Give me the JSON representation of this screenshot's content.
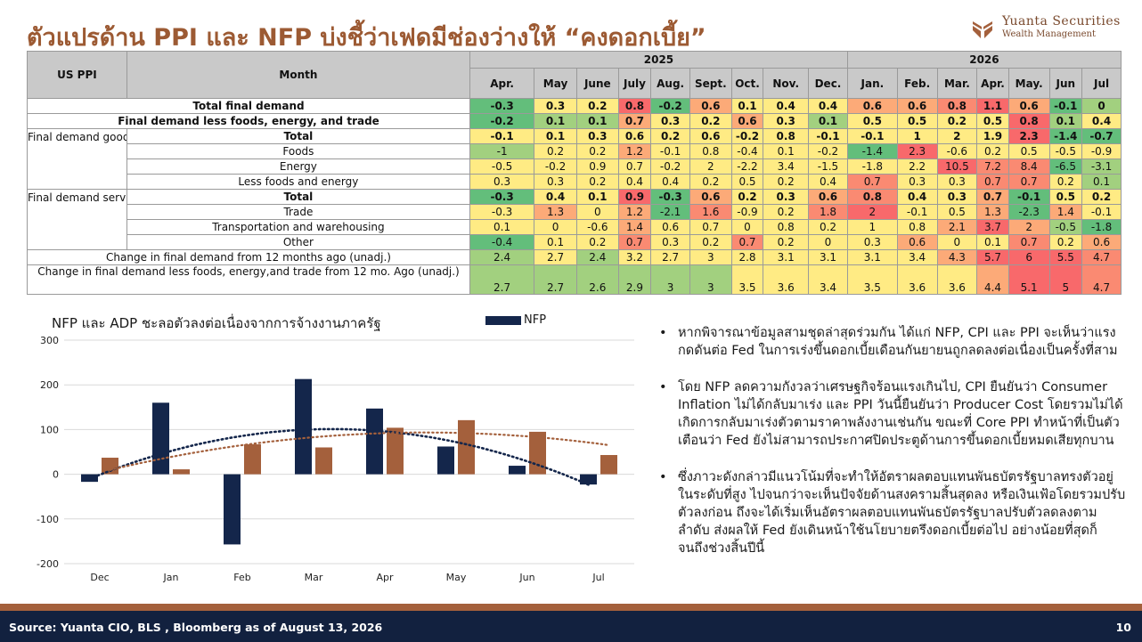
{
  "title": "ตัวแปรด้าน PPI และ NFP บ่งชี้ว่าเฟดมีช่องว่างให้ “คงดอกเบี้ย”",
  "brand": {
    "name": "Yuanta Securities",
    "sub": "Wealth Management",
    "icon": "yuanta-logo-icon"
  },
  "colors": {
    "title": "#9c5a33",
    "nfp": "#14264b",
    "adp": "#a4603c",
    "footer": "#12213f"
  },
  "table": {
    "col_label": "US PPI",
    "col_month": "Month",
    "year_2025": "2025",
    "year_2026": "2026",
    "months": [
      "Apr.",
      "May",
      "June",
      "July",
      "Aug.",
      "Sept.",
      "Oct.",
      "Nov.",
      "Dec.",
      "Jan.",
      "Feb.",
      "Mar.",
      "Apr.",
      "May.",
      "Jun",
      "Jul"
    ],
    "group_goods": "Final demand goods",
    "group_services": "Final demand services",
    "rows": [
      {
        "label": "Total final demand",
        "values": [
          "-0.3",
          "0.3",
          "0.2",
          "0.8",
          "-0.2",
          "0.6",
          "0.1",
          "0.4",
          "0.4",
          "0.6",
          "0.6",
          "0.8",
          "1.1",
          "0.6",
          "-0.1",
          "0"
        ]
      },
      {
        "label": "Final demand less foods, energy, and trade",
        "values": [
          "-0.2",
          "0.1",
          "0.1",
          "0.7",
          "0.3",
          "0.2",
          "0.6",
          "0.3",
          "0.1",
          "0.5",
          "0.5",
          "0.2",
          "0.5",
          "0.8",
          "0.1",
          "0.4"
        ]
      },
      {
        "label": "Total",
        "values": [
          "-0.1",
          "0.1",
          "0.3",
          "0.6",
          "0.2",
          "0.6",
          "-0.2",
          "0.8",
          "-0.1",
          "-0.1",
          "1",
          "2",
          "1.9",
          "2.3",
          "-1.4",
          "-0.7"
        ]
      },
      {
        "label": "Foods",
        "values": [
          "-1",
          "0.2",
          "0.2",
          "1.2",
          "-0.1",
          "0.8",
          "-0.4",
          "0.1",
          "-0.2",
          "-1.4",
          "2.3",
          "-0.6",
          "0.2",
          "0.5",
          "-0.5",
          "-0.9"
        ]
      },
      {
        "label": "Energy",
        "values": [
          "-0.5",
          "-0.2",
          "0.9",
          "0.7",
          "-0.2",
          "2",
          "-2.2",
          "3.4",
          "-1.5",
          "-1.8",
          "2.2",
          "10.5",
          "7.2",
          "8.4",
          "-6.5",
          "-3.1"
        ]
      },
      {
        "label": "Less foods and energy",
        "values": [
          "0.3",
          "0.3",
          "0.2",
          "0.4",
          "0.4",
          "0.2",
          "0.5",
          "0.2",
          "0.4",
          "0.7",
          "0.3",
          "0.3",
          "0.7",
          "0.7",
          "0.2",
          "0.1"
        ]
      },
      {
        "label": "Total",
        "values": [
          "-0.3",
          "0.4",
          "0.1",
          "0.9",
          "-0.3",
          "0.6",
          "0.2",
          "0.3",
          "0.6",
          "0.8",
          "0.4",
          "0.3",
          "0.7",
          "-0.1",
          "0.5",
          "0.2"
        ]
      },
      {
        "label": "Trade",
        "values": [
          "-0.3",
          "1.3",
          "0",
          "1.2",
          "-2.1",
          "1.6",
          "-0.9",
          "0.2",
          "1.8",
          "2",
          "-0.1",
          "0.5",
          "1.3",
          "-2.3",
          "1.4",
          "-0.1"
        ]
      },
      {
        "label": "Transportation and warehousing",
        "values": [
          "0.1",
          "0",
          "-0.6",
          "1.4",
          "0.6",
          "0.7",
          "0",
          "0.8",
          "0.2",
          "1",
          "0.8",
          "2.1",
          "3.7",
          "2",
          "-0.5",
          "-1.8"
        ]
      },
      {
        "label": "Other",
        "values": [
          "-0.4",
          "0.1",
          "0.2",
          "0.7",
          "0.3",
          "0.2",
          "0.7",
          "0.2",
          "0",
          "0.3",
          "0.6",
          "0",
          "0.1",
          "0.7",
          "0.2",
          "0.6"
        ]
      },
      {
        "label": "Change in final demand from 12 months ago (unadj.)",
        "values": [
          "2.4",
          "2.7",
          "2.4",
          "3.2",
          "2.7",
          "3",
          "2.8",
          "3.1",
          "3.1",
          "3.1",
          "3.4",
          "4.3",
          "5.7",
          "6",
          "5.5",
          "4.7"
        ]
      },
      {
        "label": "Change in final demand less foods, energy,and trade from 12 mo. Ago (unadj.)",
        "values": [
          "2.7",
          "2.7",
          "2.6",
          "2.9",
          "3",
          "3",
          "3.5",
          "3.6",
          "3.4",
          "3.5",
          "3.6",
          "3.6",
          "4.4",
          "5.1",
          "5",
          "4.7"
        ]
      }
    ],
    "colors": [
      [
        "#63be7b",
        "#ffeb84",
        "#ffeb84",
        "#f8696b",
        "#63be7b",
        "#fcaa78",
        "#ffeb84",
        "#ffeb84",
        "#ffeb84",
        "#fcaa78",
        "#fcaa78",
        "#fa8a72",
        "#f8696b",
        "#fcaa78",
        "#63be7b",
        "#a2d07f"
      ],
      [
        "#63be7b",
        "#a2d07f",
        "#a2d07f",
        "#fcaa78",
        "#ffeb84",
        "#ffeb84",
        "#fcaa78",
        "#ffeb84",
        "#a2d07f",
        "#ffeb84",
        "#ffeb84",
        "#ffeb84",
        "#ffeb84",
        "#f8696b",
        "#a2d07f",
        "#ffeb84"
      ],
      [
        "#ffeb84",
        "#ffeb84",
        "#ffeb84",
        "#ffeb84",
        "#ffeb84",
        "#ffeb84",
        "#ffeb84",
        "#ffeb84",
        "#ffeb84",
        "#ffeb84",
        "#ffeb84",
        "#ffeb84",
        "#ffeb84",
        "#f8696b",
        "#63be7b",
        "#63be7b"
      ],
      [
        "#a2d07f",
        "#ffeb84",
        "#ffeb84",
        "#fcaa78",
        "#ffeb84",
        "#ffeb84",
        "#ffeb84",
        "#ffeb84",
        "#ffeb84",
        "#63be7b",
        "#f8696b",
        "#ffeb84",
        "#ffeb84",
        "#ffeb84",
        "#ffeb84",
        "#ffeb84"
      ],
      [
        "#ffeb84",
        "#ffeb84",
        "#ffeb84",
        "#ffeb84",
        "#ffeb84",
        "#ffeb84",
        "#ffeb84",
        "#ffeb84",
        "#ffeb84",
        "#ffeb84",
        "#ffeb84",
        "#f8696b",
        "#fa8a72",
        "#fa8a72",
        "#63be7b",
        "#a2d07f"
      ],
      [
        "#ffeb84",
        "#ffeb84",
        "#ffeb84",
        "#ffeb84",
        "#ffeb84",
        "#ffeb84",
        "#ffeb84",
        "#ffeb84",
        "#ffeb84",
        "#fa8a72",
        "#ffeb84",
        "#ffeb84",
        "#fa8a72",
        "#fa8a72",
        "#ffeb84",
        "#a2d07f"
      ],
      [
        "#63be7b",
        "#ffeb84",
        "#ffeb84",
        "#f8696b",
        "#63be7b",
        "#fcaa78",
        "#ffeb84",
        "#ffeb84",
        "#fcaa78",
        "#fa8a72",
        "#ffeb84",
        "#ffeb84",
        "#fcaa78",
        "#63be7b",
        "#ffeb84",
        "#ffeb84"
      ],
      [
        "#ffeb84",
        "#fcaa78",
        "#ffeb84",
        "#fcaa78",
        "#63be7b",
        "#fa8a72",
        "#ffeb84",
        "#ffeb84",
        "#fa8a72",
        "#f8696b",
        "#ffeb84",
        "#ffeb84",
        "#fcaa78",
        "#63be7b",
        "#fcaa78",
        "#ffeb84"
      ],
      [
        "#ffeb84",
        "#ffeb84",
        "#ffeb84",
        "#fcaa78",
        "#ffeb84",
        "#ffeb84",
        "#ffeb84",
        "#ffeb84",
        "#ffeb84",
        "#ffeb84",
        "#ffeb84",
        "#fcaa78",
        "#f8696b",
        "#fcaa78",
        "#a2d07f",
        "#63be7b"
      ],
      [
        "#63be7b",
        "#ffeb84",
        "#ffeb84",
        "#fa8a72",
        "#ffeb84",
        "#ffeb84",
        "#fa8a72",
        "#ffeb84",
        "#ffeb84",
        "#ffeb84",
        "#fcaa78",
        "#ffeb84",
        "#ffeb84",
        "#fa8a72",
        "#ffeb84",
        "#fcaa78"
      ],
      [
        "#a2d07f",
        "#ffeb84",
        "#a2d07f",
        "#ffeb84",
        "#ffeb84",
        "#ffeb84",
        "#ffeb84",
        "#ffeb84",
        "#ffeb84",
        "#ffeb84",
        "#ffeb84",
        "#fcaa78",
        "#f8696b",
        "#f8696b",
        "#f8696b",
        "#fa8a72"
      ],
      [
        "#a2d07f",
        "#a2d07f",
        "#a2d07f",
        "#a2d07f",
        "#a2d07f",
        "#a2d07f",
        "#ffeb84",
        "#ffeb84",
        "#ffeb84",
        "#ffeb84",
        "#ffeb84",
        "#ffeb84",
        "#fcaa78",
        "#f8696b",
        "#f8696b",
        "#fa8a72"
      ]
    ]
  },
  "chart_data": {
    "type": "bar",
    "title": "NFP และ ADP ชะลอตัวลงต่อเนื่องจากการจ้างงานภาครัฐ",
    "categories": [
      "Dec",
      "Jan",
      "Feb",
      "Mar",
      "Apr",
      "May",
      "Jun",
      "Jul"
    ],
    "series": [
      {
        "name": "NFP",
        "values": [
          -17,
          160,
          -157,
          213,
          147,
          62,
          19,
          -23
        ]
      },
      {
        "values": [
          37,
          11,
          67,
          60,
          104,
          121,
          95,
          43
        ]
      }
    ],
    "trendlines": "polynomial dotted, one per series",
    "ylim": [
      -200,
      300
    ],
    "yticks": [
      "300",
      "200",
      "100",
      "0",
      "-100",
      "-200"
    ],
    "legend": "top"
  },
  "bullets": [
    "หากพิจารณาข้อมูลสามชุดล่าสุดร่วมกัน ได้แก่ NFP, CPI และ PPI จะเห็นว่าแรงกดดันต่อ Fed ในการเร่งขึ้นดอกเบี้ยเดือนกันยายนถูกลดลงต่อเนื่องเป็นครั้งที่สาม",
    "โดย NFP ลดความกังวลว่าเศรษฐกิจร้อนแรงเกินไป, CPI ยืนยันว่า Consumer Inflation ไม่ได้กลับมาเร่ง และ PPI วันนี้ยืนยันว่า Producer Cost โดยรวมไม่ได้เกิดการกลับมาเร่งตัวตามราคาพลังงานเช่นกัน ขณะที่ Core PPI ทำหน้าที่เป็นตัวเตือนว่า Fed ยังไม่สามารถประกาศปิดประตูด้านการขึ้นดอกเบี้ยหมดเสียทุกบาน",
    "ซึ่งภาวะดังกล่าวมีแนวโน้มที่จะทำให้อัตราผลตอบแทนพันธบัตรรัฐบาลทรงตัวอยู่ในระดับที่สูง ไปจนกว่าจะเห็นปัจจัยด้านสงครามสิ้นสุดลง หรือเงินเฟ้อโดยรวมปรับตัวลงก่อน ถึงจะได้เริ่มเห็นอัตราผลตอบแทนพันธบัตรรัฐบาลปรับตัวลดลงตามลำดับ ส่งผลให้ Fed ยังเดินหน้าใช้นโยบายตรึงดอกเบี้ยต่อไป อย่างน้อยที่สุดก็จนถึงช่วงสิ้นปีนี้"
  ],
  "bullet_marker": "•",
  "footer": {
    "source": "Source: Yuanta CIO, BLS , Bloomberg as of August 13, 2026",
    "page": "10"
  }
}
